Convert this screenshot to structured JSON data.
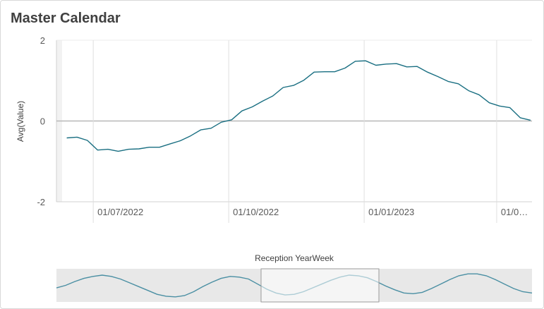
{
  "header": {
    "title": "Master Calendar"
  },
  "chart_data": {
    "type": "line",
    "title": "Master Calendar",
    "ylabel": "Avg(Value)",
    "xlabel": "Reception YearWeek",
    "ylim": [
      -2,
      2
    ],
    "y_ticks": [
      "2",
      "0",
      "-2"
    ],
    "x_tick_labels": [
      "01/07/2022",
      "01/10/2022",
      "01/01/2023",
      "01/0…"
    ],
    "grid": true,
    "series": [
      {
        "color": "#1a6f82",
        "x": [
          "2022-06-13",
          "2022-06-20",
          "2022-06-27",
          "2022-07-04",
          "2022-07-11",
          "2022-07-18",
          "2022-07-25",
          "2022-08-01",
          "2022-08-08",
          "2022-08-15",
          "2022-08-22",
          "2022-08-29",
          "2022-09-05",
          "2022-09-12",
          "2022-09-19",
          "2022-09-26",
          "2022-10-03",
          "2022-10-10",
          "2022-10-17",
          "2022-10-24",
          "2022-10-31",
          "2022-11-07",
          "2022-11-14",
          "2022-11-21",
          "2022-11-28",
          "2022-12-05",
          "2022-12-12",
          "2022-12-19",
          "2022-12-26",
          "2023-01-02",
          "2023-01-09",
          "2023-01-16",
          "2023-01-23",
          "2023-01-30",
          "2023-02-06",
          "2023-02-13",
          "2023-02-20",
          "2023-02-27",
          "2023-03-06",
          "2023-03-13",
          "2023-03-20",
          "2023-03-27",
          "2023-04-03",
          "2023-04-10",
          "2023-04-17",
          "2023-04-24"
        ],
        "y": [
          -0.42,
          -0.4,
          -0.48,
          -0.72,
          -0.7,
          -0.75,
          -0.7,
          -0.69,
          -0.65,
          -0.65,
          -0.57,
          -0.49,
          -0.37,
          -0.22,
          -0.18,
          -0.03,
          0.03,
          0.25,
          0.35,
          0.49,
          0.62,
          0.83,
          0.88,
          1.01,
          1.21,
          1.22,
          1.22,
          1.31,
          1.48,
          1.49,
          1.38,
          1.41,
          1.42,
          1.34,
          1.35,
          1.21,
          1.1,
          0.98,
          0.92,
          0.75,
          0.65,
          0.45,
          0.37,
          0.33,
          0.08,
          0.02
        ]
      }
    ],
    "overview": {
      "label": "Reception YearWeek",
      "y": [
        0.1,
        0.3,
        0.6,
        0.85,
        1.0,
        1.1,
        1.0,
        0.8,
        0.5,
        0.2,
        -0.1,
        -0.4,
        -0.55,
        -0.6,
        -0.5,
        -0.2,
        0.2,
        0.55,
        0.85,
        1.0,
        0.95,
        0.8,
        0.4,
        0.0,
        -0.3,
        -0.45,
        -0.4,
        -0.2,
        0.1,
        0.4,
        0.7,
        0.95,
        1.1,
        1.05,
        0.9,
        0.6,
        0.25,
        -0.05,
        -0.3,
        -0.35,
        -0.25,
        0.05,
        0.4,
        0.75,
        1.05,
        1.2,
        1.2,
        1.05,
        0.75,
        0.4,
        0.05,
        -0.2,
        -0.3
      ]
    }
  }
}
